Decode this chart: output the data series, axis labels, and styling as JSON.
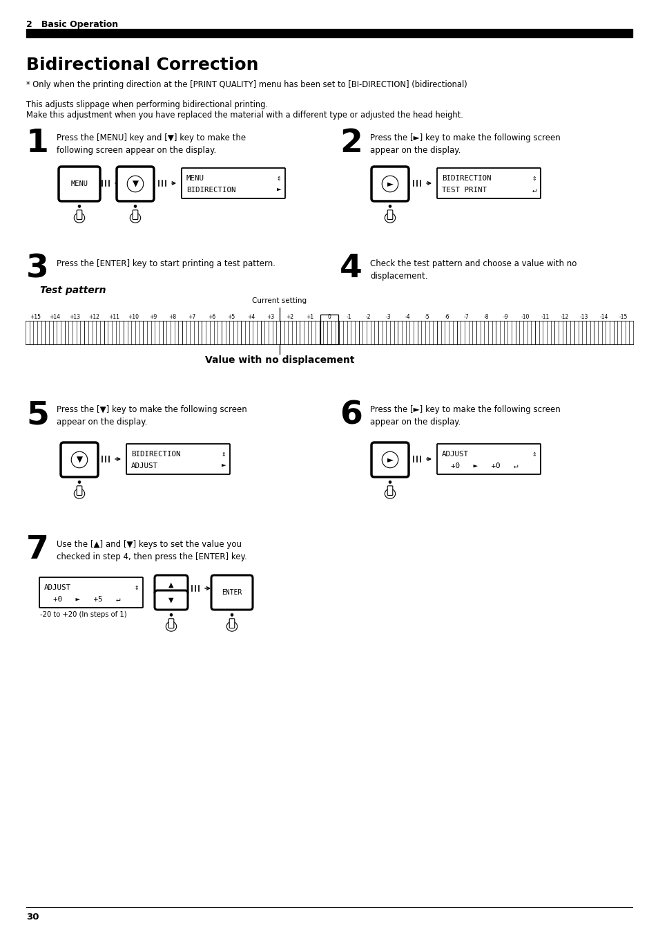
{
  "page_bg": "#ffffff",
  "section_label": "2   Basic Operation",
  "title": "Bidirectional Correction",
  "subtitle": "* Only when the printing direction at the [PRINT QUALITY] menu has been set to [BI-DIRECTION] (bidirectional)",
  "desc1": "This adjusts slippage when performing bidirectional printing.",
  "desc2": "Make this adjustment when you have replaced the material with a different type or adjusted the head height.",
  "step1_num": "1",
  "step1_text": "Press the [MENU] key and [▼] key to make the\nfollowing screen appear on the display.",
  "step2_num": "2",
  "step2_text": "Press the [►] key to make the following screen\nappear on the display.",
  "step3_num": "3",
  "step3_text": "Press the [ENTER] key to start printing a test pattern.",
  "step4_num": "4",
  "step4_text": "Check the test pattern and choose a value with no\ndisplacement.",
  "step5_num": "5",
  "step5_text": "Press the [▼] key to make the following screen\nappear on the display.",
  "step6_num": "6",
  "step6_text": "Press the [►] key to make the following screen\nappear on the display.",
  "step7_num": "7",
  "step7_text": "Use the [▲] and [▼] keys to set the value you\nchecked in step 4, then press the [ENTER] key.",
  "display1_l1": "MENU",
  "display1_l2": "BIDIRECTION",
  "display2_l1": "BIDIRECTION",
  "display2_l2": "TEST PRINT",
  "display5_l1": "BIDIRECTION",
  "display5_l2": "ADJUST",
  "display6_l1": "ADJUST",
  "display6_l2a": "+0",
  "display6_l2b": "+0",
  "display7_l1": "ADJUST",
  "display7_l2a": "+0",
  "display7_l2b": "+5",
  "display7_note": "-20 to +20 (In steps of 1)",
  "test_pattern_label": "Test pattern",
  "current_setting_label": "Current setting",
  "value_no_displacement": "Value with no displacement",
  "page_num": "30",
  "header_bar_color": "#000000"
}
